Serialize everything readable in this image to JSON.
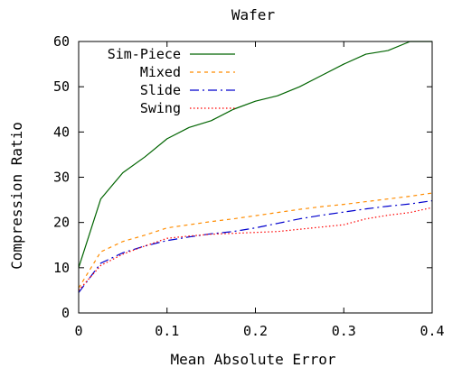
{
  "chart_data": {
    "type": "line",
    "title": "Wafer",
    "xlabel": "Mean Absolute Error",
    "ylabel": "Compression Ratio",
    "xlim": [
      0,
      0.4
    ],
    "ylim": [
      0,
      60
    ],
    "grid": false,
    "legend_position": "top-left",
    "x_ticks": [
      0,
      0.1,
      0.2,
      0.3,
      0.4
    ],
    "x_tick_labels": [
      "0",
      "0.1",
      "0.2",
      "0.3",
      "0.4"
    ],
    "y_ticks": [
      0,
      10,
      20,
      30,
      40,
      50,
      60
    ],
    "y_tick_labels": [
      "0",
      "10",
      "20",
      "30",
      "40",
      "50",
      "60"
    ],
    "series": [
      {
        "name": "Sim-Piece",
        "color": "#006400",
        "dash": "solid",
        "points": [
          [
            0.0,
            10.0
          ],
          [
            0.025,
            25.2
          ],
          [
            0.05,
            31.0
          ],
          [
            0.075,
            34.5
          ],
          [
            0.1,
            38.5
          ],
          [
            0.125,
            41.0
          ],
          [
            0.15,
            42.5
          ],
          [
            0.175,
            45.0
          ],
          [
            0.2,
            46.8
          ],
          [
            0.225,
            48.0
          ],
          [
            0.25,
            50.0
          ],
          [
            0.275,
            52.5
          ],
          [
            0.3,
            55.0
          ],
          [
            0.325,
            57.2
          ],
          [
            0.35,
            58.0
          ],
          [
            0.375,
            60.0
          ],
          [
            0.4,
            60.0
          ]
        ]
      },
      {
        "name": "Mixed",
        "color": "#ff8c00",
        "dash": "dashed",
        "points": [
          [
            0.0,
            5.5
          ],
          [
            0.025,
            13.5
          ],
          [
            0.05,
            15.8
          ],
          [
            0.075,
            17.2
          ],
          [
            0.1,
            18.8
          ],
          [
            0.125,
            19.5
          ],
          [
            0.15,
            20.2
          ],
          [
            0.175,
            20.8
          ],
          [
            0.2,
            21.5
          ],
          [
            0.225,
            22.2
          ],
          [
            0.25,
            22.9
          ],
          [
            0.275,
            23.5
          ],
          [
            0.3,
            24.0
          ],
          [
            0.325,
            24.6
          ],
          [
            0.35,
            25.2
          ],
          [
            0.375,
            25.8
          ],
          [
            0.4,
            26.5
          ]
        ]
      },
      {
        "name": "Slide",
        "color": "#0000cd",
        "dash": "dashdot",
        "points": [
          [
            0.0,
            4.5
          ],
          [
            0.025,
            11.0
          ],
          [
            0.05,
            13.3
          ],
          [
            0.075,
            14.8
          ],
          [
            0.1,
            16.0
          ],
          [
            0.125,
            16.8
          ],
          [
            0.15,
            17.5
          ],
          [
            0.175,
            18.0
          ],
          [
            0.2,
            18.8
          ],
          [
            0.225,
            19.8
          ],
          [
            0.25,
            20.8
          ],
          [
            0.275,
            21.6
          ],
          [
            0.3,
            22.3
          ],
          [
            0.325,
            23.0
          ],
          [
            0.35,
            23.6
          ],
          [
            0.375,
            24.1
          ],
          [
            0.4,
            24.8
          ]
        ]
      },
      {
        "name": "Swing",
        "color": "#ff0000",
        "dash": "dotted",
        "points": [
          [
            0.0,
            5.0
          ],
          [
            0.025,
            10.5
          ],
          [
            0.05,
            13.0
          ],
          [
            0.075,
            14.8
          ],
          [
            0.1,
            16.5
          ],
          [
            0.125,
            17.0
          ],
          [
            0.15,
            17.4
          ],
          [
            0.175,
            17.6
          ],
          [
            0.2,
            17.8
          ],
          [
            0.225,
            18.0
          ],
          [
            0.25,
            18.5
          ],
          [
            0.275,
            19.0
          ],
          [
            0.3,
            19.5
          ],
          [
            0.325,
            20.8
          ],
          [
            0.35,
            21.6
          ],
          [
            0.375,
            22.2
          ],
          [
            0.4,
            23.3
          ]
        ]
      }
    ]
  }
}
